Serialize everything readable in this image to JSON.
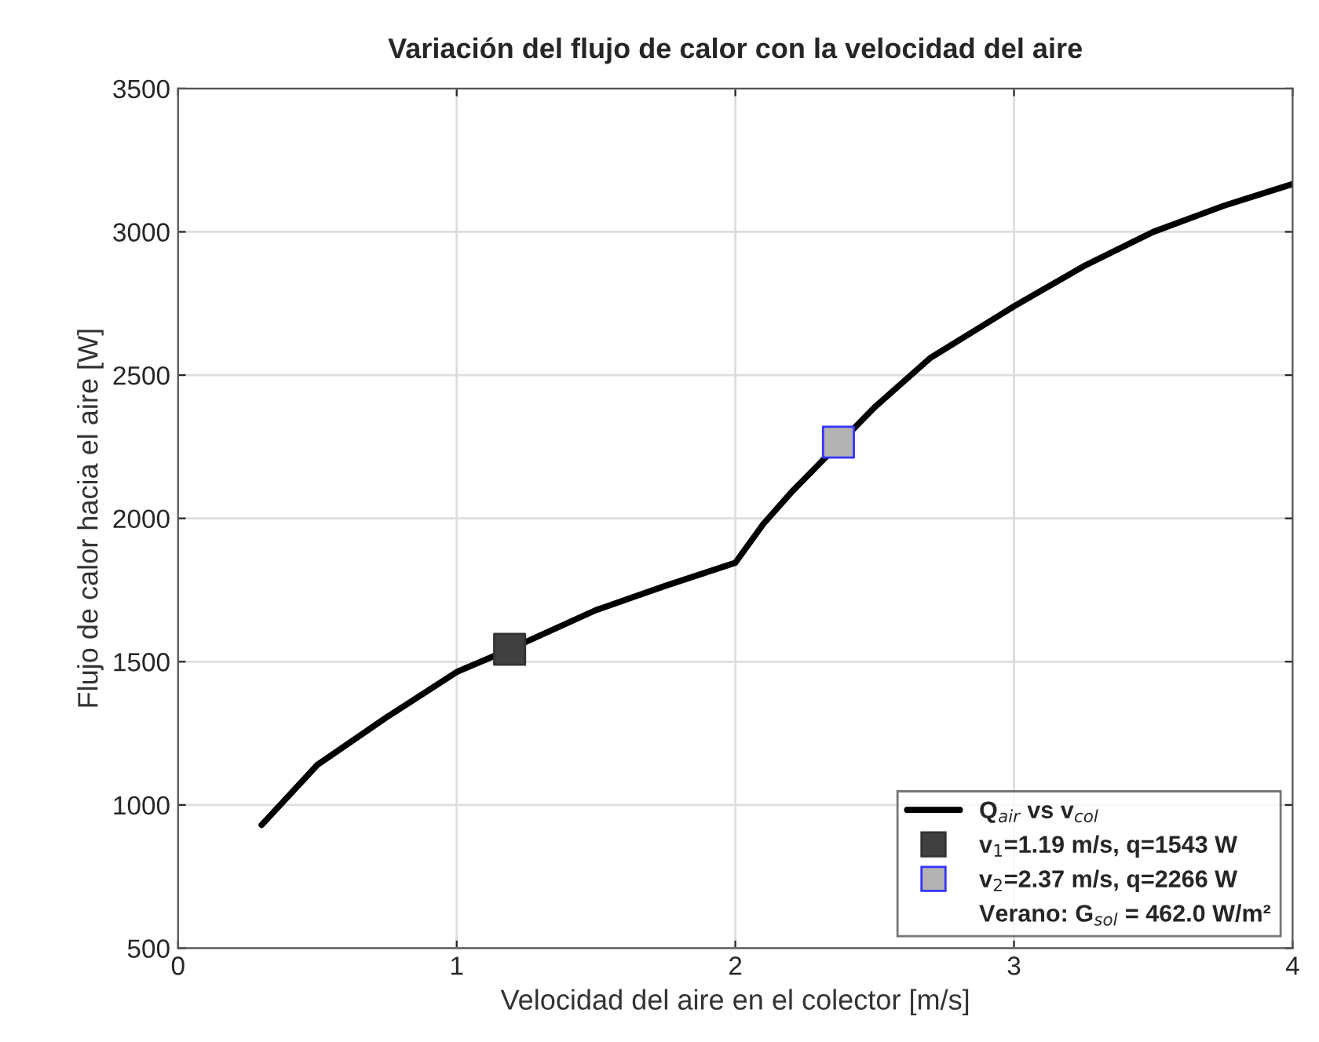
{
  "chart_data": {
    "type": "line",
    "title": "Variación del flujo de calor con la velocidad del aire",
    "xlabel": "Velocidad del aire en el colector [m/s]",
    "ylabel": "Flujo de calor hacia el aire [W]",
    "series": [
      {
        "name": "Q$_{air}$ vs v$_{col}$",
        "color": "#000000",
        "x": [
          0.3,
          0.5,
          0.75,
          1.0,
          1.19,
          1.5,
          1.75,
          2.0,
          2.1,
          2.2,
          2.5,
          2.7,
          3.0,
          3.25,
          3.5,
          3.75,
          4.0
        ],
        "values": [
          930,
          1140,
          1307,
          1464,
          1543,
          1680,
          1765,
          1845,
          1980,
          2090,
          2388,
          2560,
          2740,
          2880,
          3000,
          3090,
          3167
        ]
      },
      {
        "name": "v$_{1}$=1.19 m/s, q=1543 W",
        "type": "scatter",
        "marker": "square",
        "color": "#404040",
        "x": [
          1.19
        ],
        "values": [
          1543
        ]
      },
      {
        "name": "v$_{2}$=2.37 m/s, q=2266 W",
        "type": "scatter",
        "marker": "square",
        "color": "#b3b3b3",
        "x": [
          2.37
        ],
        "values": [
          2266
        ]
      }
    ],
    "annotations": [
      "Verano: G$_{sol}$ = 462.0 W/m²"
    ],
    "xlim": [
      0,
      4
    ],
    "xticks": [
      0,
      1,
      2,
      3,
      4
    ],
    "ylim": [
      500,
      3500
    ],
    "yticks": [
      500,
      1000,
      1500,
      2000,
      2500,
      3000,
      3500
    ],
    "grid": true,
    "legend": "bottom right"
  }
}
